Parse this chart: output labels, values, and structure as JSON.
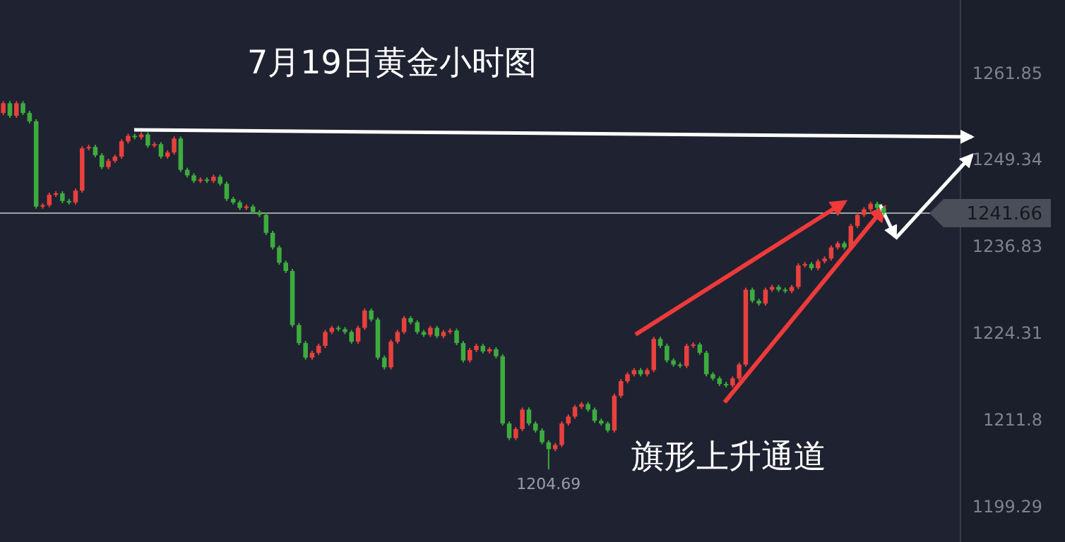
{
  "chart_data": {
    "type": "candlestick",
    "title": "7月19日黄金小时图",
    "annotations": [
      "旗形上升通道",
      {
        "text": "1204.69",
        "y": 1204.69
      }
    ],
    "categories": [
      null,
      null,
      null,
      null,
      null,
      null,
      null,
      null,
      null,
      null,
      null,
      null,
      null,
      null,
      null,
      null,
      null,
      null,
      null,
      null,
      null,
      null,
      null,
      null,
      null,
      null,
      null,
      null,
      null,
      null,
      null,
      null,
      null,
      null,
      null,
      null,
      null,
      null,
      null,
      null,
      null,
      null,
      null,
      null,
      null,
      null,
      null,
      null,
      null,
      null,
      null,
      null,
      null,
      null,
      null,
      null,
      null,
      null,
      null,
      null,
      null,
      null,
      null,
      null,
      null,
      null,
      null,
      null,
      null,
      null,
      null,
      null,
      null,
      null,
      null,
      null,
      null,
      null,
      null,
      null,
      null,
      null,
      null,
      null,
      null,
      null,
      null,
      null,
      null,
      null,
      null,
      null,
      null,
      null,
      null,
      null,
      null,
      null,
      null,
      null,
      null,
      null,
      null,
      null,
      null,
      null,
      null,
      null,
      null,
      null,
      null,
      null,
      null,
      null,
      null,
      null,
      null,
      null,
      null,
      null,
      null,
      null,
      null,
      null,
      null,
      null,
      null,
      null,
      null,
      null,
      null,
      null,
      null,
      null,
      null
    ],
    "ohlc": [
      [
        1256.1,
        1257.8,
        1255.8,
        1257.5
      ],
      [
        1257.5,
        1257.8,
        1255.4,
        1255.7
      ],
      [
        1255.7,
        1257.8,
        1255.4,
        1257.5
      ],
      [
        1257.5,
        1257.8,
        1255.8,
        1256.1
      ],
      [
        1256.1,
        1256.4,
        1254.6,
        1254.9
      ],
      [
        1254.9,
        1255.2,
        1242.3,
        1242.6
      ],
      [
        1242.6,
        1243.1,
        1242.3,
        1242.8
      ],
      [
        1242.8,
        1244.6,
        1242.5,
        1244.3
      ],
      [
        1244.3,
        1244.8,
        1244.0,
        1244.5
      ],
      [
        1244.5,
        1244.8,
        1243.1,
        1243.4
      ],
      [
        1243.4,
        1243.7,
        1242.9,
        1243.2
      ],
      [
        1243.2,
        1245.2,
        1242.9,
        1244.9
      ],
      [
        1244.9,
        1251.3,
        1244.6,
        1251.0
      ],
      [
        1251.0,
        1251.5,
        1250.7,
        1251.2
      ],
      [
        1251.2,
        1251.5,
        1249.7,
        1250.0
      ],
      [
        1250.0,
        1250.3,
        1248.0,
        1248.3
      ],
      [
        1248.3,
        1249.5,
        1248.0,
        1249.2
      ],
      [
        1249.2,
        1250.1,
        1248.9,
        1249.8
      ],
      [
        1249.8,
        1252.3,
        1249.5,
        1252.0
      ],
      [
        1252.0,
        1253.1,
        1251.7,
        1252.8
      ],
      [
        1252.8,
        1253.1,
        1252.3,
        1252.6
      ],
      [
        1252.6,
        1253.3,
        1252.3,
        1253.0
      ],
      [
        1253.0,
        1253.3,
        1251.1,
        1251.4
      ],
      [
        1251.4,
        1251.9,
        1251.1,
        1251.6
      ],
      [
        1251.6,
        1251.9,
        1249.5,
        1249.8
      ],
      [
        1249.8,
        1250.7,
        1249.5,
        1250.4
      ],
      [
        1250.4,
        1252.7,
        1250.1,
        1252.4
      ],
      [
        1252.4,
        1252.7,
        1247.6,
        1247.9
      ],
      [
        1247.9,
        1248.2,
        1246.8,
        1247.1
      ],
      [
        1247.1,
        1247.4,
        1246.0,
        1246.3
      ],
      [
        1246.3,
        1246.8,
        1246.0,
        1246.5
      ],
      [
        1246.5,
        1246.8,
        1246.0,
        1246.3
      ],
      [
        1246.3,
        1247.2,
        1246.0,
        1246.9
      ],
      [
        1246.9,
        1247.2,
        1245.6,
        1245.9
      ],
      [
        1245.9,
        1246.2,
        1243.4,
        1243.7
      ],
      [
        1243.7,
        1244.0,
        1242.9,
        1243.2
      ],
      [
        1243.2,
        1243.5,
        1242.1,
        1242.4
      ],
      [
        1242.4,
        1242.9,
        1242.1,
        1242.6
      ],
      [
        1242.6,
        1242.9,
        1241.5,
        1241.8
      ],
      [
        1241.8,
        1242.1,
        1241.1,
        1241.4
      ],
      [
        1241.4,
        1241.7,
        1238.5,
        1238.8
      ],
      [
        1238.8,
        1239.1,
        1236.4,
        1236.7
      ],
      [
        1236.7,
        1237.0,
        1234.2,
        1234.5
      ],
      [
        1234.5,
        1234.8,
        1233.0,
        1233.3
      ],
      [
        1233.3,
        1233.6,
        1225.2,
        1225.5
      ],
      [
        1225.5,
        1225.8,
        1222.6,
        1222.9
      ],
      [
        1222.9,
        1223.2,
        1220.5,
        1220.8
      ],
      [
        1220.8,
        1221.8,
        1220.5,
        1221.5
      ],
      [
        1221.5,
        1222.8,
        1221.2,
        1222.5
      ],
      [
        1222.5,
        1224.8,
        1222.2,
        1224.5
      ],
      [
        1224.5,
        1225.4,
        1224.2,
        1225.1
      ],
      [
        1225.1,
        1225.4,
        1224.6,
        1224.9
      ],
      [
        1224.9,
        1225.2,
        1224.2,
        1224.5
      ],
      [
        1224.5,
        1224.8,
        1222.8,
        1223.1
      ],
      [
        1223.1,
        1225.4,
        1222.8,
        1225.1
      ],
      [
        1225.1,
        1227.9,
        1224.8,
        1227.6
      ],
      [
        1227.6,
        1227.9,
        1226.0,
        1226.3
      ],
      [
        1226.3,
        1226.6,
        1220.5,
        1220.8
      ],
      [
        1220.8,
        1221.1,
        1219.1,
        1219.4
      ],
      [
        1219.4,
        1223.4,
        1219.1,
        1223.1
      ],
      [
        1223.1,
        1224.8,
        1222.8,
        1224.5
      ],
      [
        1224.5,
        1226.8,
        1224.2,
        1226.5
      ],
      [
        1226.5,
        1226.8,
        1225.6,
        1225.9
      ],
      [
        1225.9,
        1226.2,
        1224.2,
        1224.5
      ],
      [
        1224.5,
        1224.8,
        1223.8,
        1224.1
      ],
      [
        1224.1,
        1225.4,
        1223.8,
        1225.1
      ],
      [
        1225.1,
        1225.4,
        1223.6,
        1223.9
      ],
      [
        1223.9,
        1224.8,
        1223.6,
        1224.5
      ],
      [
        1224.5,
        1225.0,
        1224.2,
        1224.7
      ],
      [
        1224.7,
        1225.0,
        1222.6,
        1222.9
      ],
      [
        1222.9,
        1223.2,
        1220.1,
        1220.4
      ],
      [
        1220.4,
        1222.2,
        1220.1,
        1221.9
      ],
      [
        1221.9,
        1222.8,
        1221.6,
        1222.5
      ],
      [
        1222.5,
        1222.8,
        1221.4,
        1221.7
      ],
      [
        1221.7,
        1222.3,
        1221.4,
        1222.0
      ],
      [
        1222.0,
        1222.3,
        1220.7,
        1221.0
      ],
      [
        1221.0,
        1221.3,
        1211.0,
        1211.3
      ],
      [
        1211.3,
        1211.6,
        1208.9,
        1209.2
      ],
      [
        1209.2,
        1210.8,
        1208.9,
        1210.5
      ],
      [
        1210.5,
        1213.6,
        1210.2,
        1213.3
      ],
      [
        1213.3,
        1213.6,
        1211.0,
        1211.3
      ],
      [
        1211.3,
        1211.6,
        1210.0,
        1210.3
      ],
      [
        1210.3,
        1210.6,
        1208.3,
        1208.6
      ],
      [
        1208.6,
        1208.9,
        1204.69,
        1207.6
      ],
      [
        1207.6,
        1208.5,
        1207.3,
        1208.2
      ],
      [
        1208.2,
        1211.6,
        1207.9,
        1211.3
      ],
      [
        1211.3,
        1212.6,
        1211.0,
        1212.3
      ],
      [
        1212.3,
        1214.0,
        1212.0,
        1213.7
      ],
      [
        1213.7,
        1214.4,
        1213.4,
        1214.1
      ],
      [
        1214.1,
        1214.4,
        1213.0,
        1213.3
      ],
      [
        1213.3,
        1213.6,
        1211.4,
        1211.7
      ],
      [
        1211.7,
        1212.0,
        1211.0,
        1211.3
      ],
      [
        1211.3,
        1211.6,
        1210.0,
        1210.3
      ],
      [
        1210.3,
        1215.6,
        1210.0,
        1215.3
      ],
      [
        1215.3,
        1217.7,
        1215.0,
        1217.4
      ],
      [
        1217.4,
        1218.7,
        1217.1,
        1218.4
      ],
      [
        1218.4,
        1219.3,
        1218.1,
        1219.0
      ],
      [
        1219.0,
        1219.3,
        1218.1,
        1218.4
      ],
      [
        1218.4,
        1219.3,
        1218.1,
        1219.0
      ],
      [
        1219.0,
        1223.8,
        1218.7,
        1223.5
      ],
      [
        1223.5,
        1223.8,
        1222.2,
        1222.5
      ],
      [
        1222.5,
        1222.8,
        1220.1,
        1220.4
      ],
      [
        1220.4,
        1220.7,
        1219.5,
        1219.8
      ],
      [
        1219.8,
        1220.1,
        1219.3,
        1219.6
      ],
      [
        1219.6,
        1222.8,
        1219.3,
        1222.5
      ],
      [
        1222.5,
        1223.0,
        1222.2,
        1222.7
      ],
      [
        1222.7,
        1223.0,
        1221.2,
        1221.5
      ],
      [
        1221.5,
        1221.8,
        1218.1,
        1218.4
      ],
      [
        1218.4,
        1218.7,
        1217.5,
        1217.8
      ],
      [
        1217.8,
        1218.1,
        1216.7,
        1217.0
      ],
      [
        1217.0,
        1217.3,
        1216.5,
        1216.8
      ],
      [
        1216.8,
        1218.1,
        1216.5,
        1217.8
      ],
      [
        1217.8,
        1220.1,
        1217.5,
        1219.8
      ],
      [
        1219.8,
        1230.9,
        1219.5,
        1230.6
      ],
      [
        1230.6,
        1230.9,
        1228.7,
        1229.0
      ],
      [
        1229.0,
        1229.3,
        1228.3,
        1228.6
      ],
      [
        1228.6,
        1230.9,
        1228.3,
        1230.6
      ],
      [
        1230.6,
        1231.3,
        1230.3,
        1231.0
      ],
      [
        1231.0,
        1231.3,
        1230.3,
        1230.6
      ],
      [
        1230.6,
        1230.9,
        1230.1,
        1230.4
      ],
      [
        1230.4,
        1231.3,
        1230.1,
        1231.0
      ],
      [
        1231.0,
        1234.4,
        1230.7,
        1234.1
      ],
      [
        1234.1,
        1234.6,
        1233.8,
        1234.3
      ],
      [
        1234.3,
        1234.6,
        1233.4,
        1233.7
      ],
      [
        1233.7,
        1235.0,
        1233.4,
        1234.7
      ],
      [
        1234.7,
        1235.4,
        1234.4,
        1235.1
      ],
      [
        1235.1,
        1237.0,
        1234.8,
        1236.7
      ],
      [
        1236.7,
        1237.6,
        1236.4,
        1237.3
      ],
      [
        1237.3,
        1237.6,
        1236.4,
        1236.7
      ],
      [
        1236.7,
        1240.1,
        1236.4,
        1239.8
      ],
      [
        1239.8,
        1241.7,
        1239.5,
        1241.4
      ],
      [
        1241.4,
        1242.5,
        1241.1,
        1242.2
      ],
      [
        1242.2,
        1243.3,
        1241.9,
        1243.0
      ],
      [
        1243.0,
        1243.3,
        1242.1,
        1242.4
      ],
      [
        1242.4,
        1242.7,
        1241.36,
        1241.66
      ]
    ],
    "colors": [
      "#e8403c",
      "#3dab3d",
      "#e8403c",
      "#3dab3d",
      "#3dab3d",
      "#3dab3d",
      "#e8403c",
      "#e8403c",
      "#e8403c",
      "#3dab3d",
      "#3dab3d",
      "#e8403c",
      "#e8403c",
      "#e8403c",
      "#3dab3d",
      "#3dab3d",
      "#e8403c",
      "#e8403c",
      "#e8403c",
      "#e8403c",
      "#3dab3d",
      "#e8403c",
      "#3dab3d",
      "#e8403c",
      "#3dab3d",
      "#e8403c",
      "#e8403c",
      "#3dab3d",
      "#3dab3d",
      "#3dab3d",
      "#e8403c",
      "#3dab3d",
      "#e8403c",
      "#3dab3d",
      "#3dab3d",
      "#3dab3d",
      "#3dab3d",
      "#e8403c",
      "#3dab3d",
      "#3dab3d",
      "#3dab3d",
      "#3dab3d",
      "#3dab3d",
      "#3dab3d",
      "#3dab3d",
      "#3dab3d",
      "#3dab3d",
      "#e8403c",
      "#e8403c",
      "#e8403c",
      "#e8403c",
      "#3dab3d",
      "#3dab3d",
      "#3dab3d",
      "#e8403c",
      "#e8403c",
      "#3dab3d",
      "#3dab3d",
      "#3dab3d",
      "#e8403c",
      "#e8403c",
      "#e8403c",
      "#3dab3d",
      "#3dab3d",
      "#3dab3d",
      "#e8403c",
      "#3dab3d",
      "#e8403c",
      "#e8403c",
      "#3dab3d",
      "#3dab3d",
      "#e8403c",
      "#e8403c",
      "#3dab3d",
      "#e8403c",
      "#3dab3d",
      "#3dab3d",
      "#3dab3d",
      "#e8403c",
      "#e8403c",
      "#3dab3d",
      "#3dab3d",
      "#3dab3d",
      "#3dab3d",
      "#e8403c",
      "#e8403c",
      "#e8403c",
      "#e8403c",
      "#e8403c",
      "#3dab3d",
      "#3dab3d",
      "#3dab3d",
      "#3dab3d",
      "#e8403c",
      "#e8403c",
      "#e8403c",
      "#e8403c",
      "#3dab3d",
      "#e8403c",
      "#e8403c",
      "#3dab3d",
      "#3dab3d",
      "#3dab3d",
      "#3dab3d",
      "#e8403c",
      "#e8403c",
      "#3dab3d",
      "#3dab3d",
      "#3dab3d",
      "#3dab3d",
      "#3dab3d",
      "#e8403c",
      "#e8403c",
      "#e8403c",
      "#3dab3d",
      "#3dab3d",
      "#e8403c",
      "#e8403c",
      "#3dab3d",
      "#3dab3d",
      "#e8403c",
      "#e8403c",
      "#e8403c",
      "#3dab3d",
      "#e8403c",
      "#e8403c",
      "#e8403c",
      "#e8403c",
      "#3dab3d",
      "#e8403c",
      "#e8403c",
      "#e8403c",
      "#e8403c",
      "#3dab3d",
      "#3dab3d"
    ],
    "ylim": [
      1194.2,
      1272.4
    ],
    "yticks": [
      1261.85,
      1249.34,
      1236.83,
      1224.31,
      1211.8,
      1199.29
    ],
    "ref_lines": [
      {
        "axis": "y",
        "value": 1241.66,
        "label": "1241.66",
        "color": "#a0a0a0"
      }
    ]
  }
}
